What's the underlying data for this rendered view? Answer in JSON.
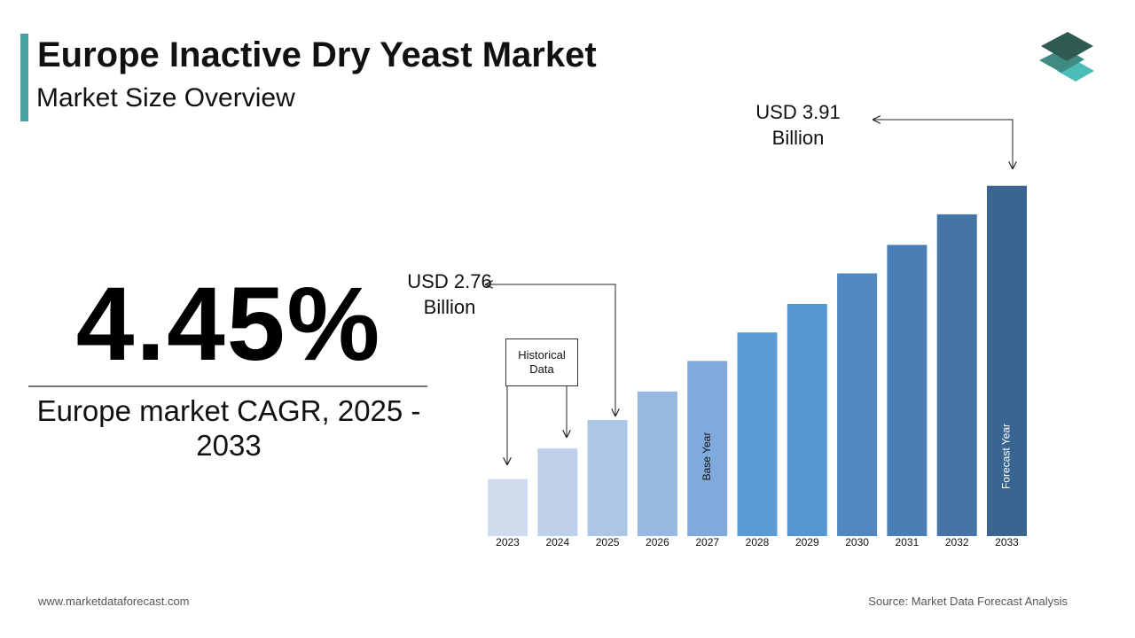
{
  "chart_data": {
    "type": "bar",
    "title": "Europe Inactive Dry Yeast Market",
    "subtitle": "Market Size Overview",
    "headline_value": "4.45%",
    "headline_caption": "Europe market CAGR, 2025 - 2033",
    "categories": [
      "2023",
      "2024",
      "2025",
      "2026",
      "2027",
      "2028",
      "2029",
      "2030",
      "2031",
      "2032",
      "2033"
    ],
    "values": [
      2.47,
      2.62,
      2.76,
      2.9,
      3.05,
      3.19,
      3.33,
      3.48,
      3.62,
      3.77,
      3.91
    ],
    "value_labels": [
      null,
      null,
      "USD 2.76 Billion",
      null,
      null,
      null,
      null,
      null,
      null,
      null,
      "USD 3.91 Billion"
    ],
    "colors": [
      "#cfdcee",
      "#bed0ea",
      "#adc6e6",
      "#97b8e0",
      "#80aadc",
      "#5b9bd5",
      "#5596d2",
      "#5089c0",
      "#4a7fb5",
      "#4474a6",
      "#3a6591"
    ],
    "ylim": [
      2.19,
      4.0
    ],
    "annotations": {
      "historical": "Historical Data",
      "base_year": "Base Year",
      "forecast_year": "Forecast Year"
    },
    "footer_left": "www.marketdataforecast.com",
    "footer_right": "Source: Market Data Forecast Analysis"
  }
}
